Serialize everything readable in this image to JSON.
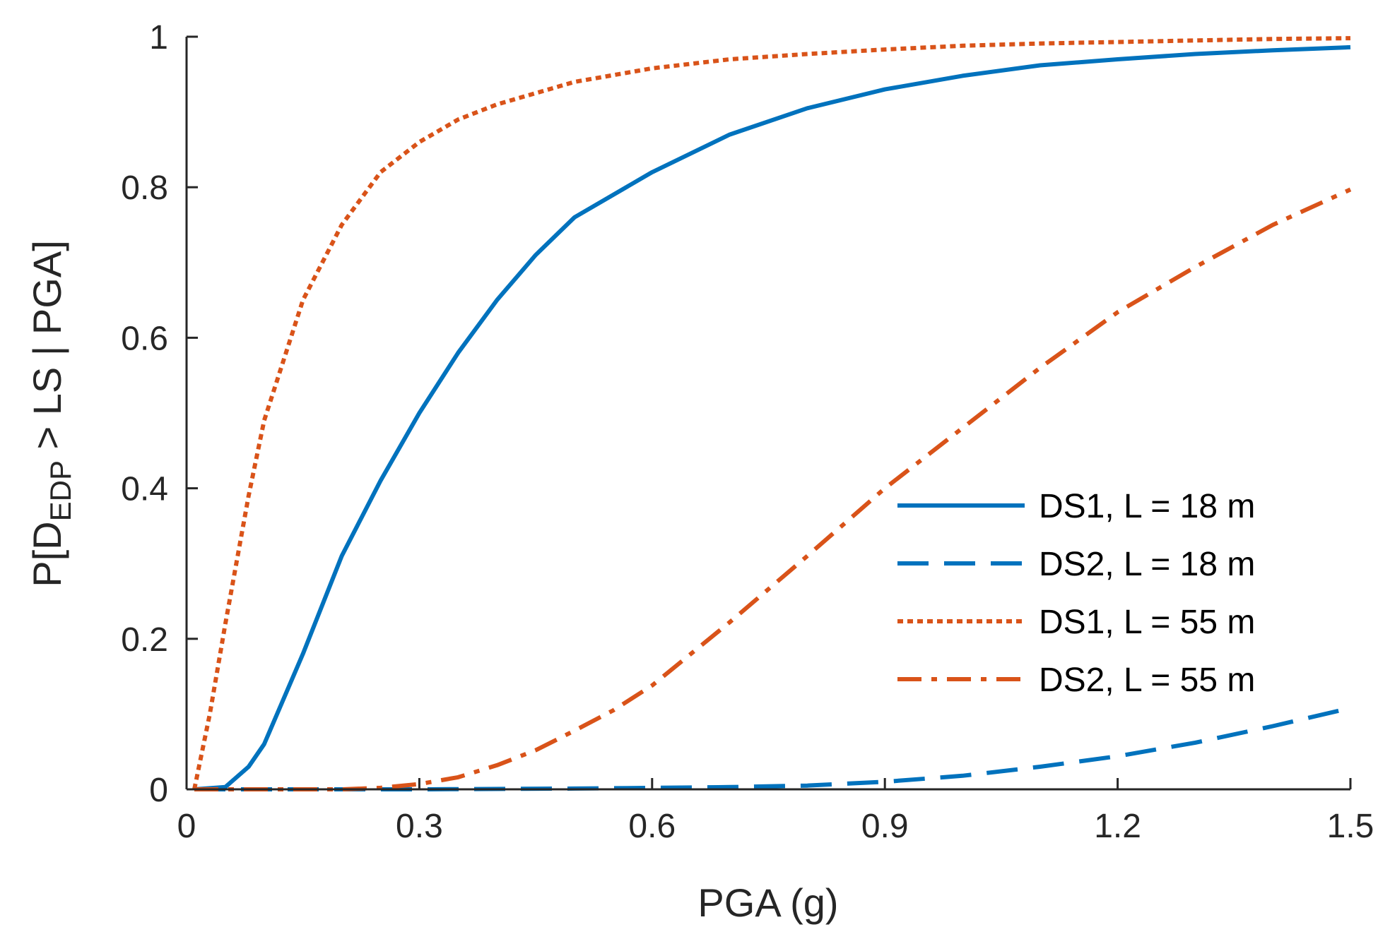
{
  "chart_data": {
    "type": "line",
    "title": "",
    "xlabel": "PGA (g)",
    "ylabel": {
      "prefix": "P[D",
      "subscript": "EDP",
      "suffix": " > LS | PGA]"
    },
    "xlim": [
      0,
      1.5
    ],
    "ylim": [
      0,
      1
    ],
    "xticks": [
      0,
      0.3,
      0.6,
      0.9,
      1.2,
      1.5
    ],
    "xtick_labels": [
      "0",
      "0.3",
      "0.6",
      "0.9",
      "1.2",
      "1.5"
    ],
    "yticks": [
      0,
      0.2,
      0.4,
      0.6,
      0.8,
      1
    ],
    "ytick_labels": [
      "0",
      "0.2",
      "0.4",
      "0.6",
      "0.8",
      "1"
    ],
    "grid": false,
    "legend_position": "center-right",
    "series": [
      {
        "name": "DS1, L = 18 m",
        "color": "#0072BD",
        "style": "solid",
        "x": [
          0.01,
          0.05,
          0.08,
          0.1,
          0.15,
          0.2,
          0.25,
          0.3,
          0.35,
          0.4,
          0.45,
          0.5,
          0.6,
          0.7,
          0.8,
          0.9,
          1.0,
          1.1,
          1.2,
          1.3,
          1.4,
          1.5
        ],
        "y": [
          0.0,
          0.003,
          0.03,
          0.06,
          0.18,
          0.31,
          0.41,
          0.5,
          0.58,
          0.65,
          0.71,
          0.76,
          0.82,
          0.87,
          0.905,
          0.93,
          0.948,
          0.962,
          0.97,
          0.977,
          0.982,
          0.986
        ]
      },
      {
        "name": "DS2, L = 18 m",
        "color": "#0072BD",
        "style": "dashed",
        "x": [
          0.01,
          0.3,
          0.5,
          0.6,
          0.7,
          0.8,
          0.9,
          1.0,
          1.1,
          1.2,
          1.3,
          1.4,
          1.5
        ],
        "y": [
          0.0,
          0.0,
          0.001,
          0.002,
          0.003,
          0.005,
          0.01,
          0.018,
          0.03,
          0.044,
          0.062,
          0.084,
          0.108
        ]
      },
      {
        "name": "DS1, L = 55 m",
        "color": "#D95319",
        "style": "dotted",
        "x": [
          0.01,
          0.03,
          0.05,
          0.08,
          0.1,
          0.15,
          0.2,
          0.25,
          0.3,
          0.35,
          0.4,
          0.5,
          0.6,
          0.7,
          0.8,
          0.9,
          1.0,
          1.1,
          1.2,
          1.3,
          1.4,
          1.5
        ],
        "y": [
          0.0,
          0.1,
          0.22,
          0.39,
          0.49,
          0.65,
          0.75,
          0.82,
          0.86,
          0.89,
          0.91,
          0.94,
          0.958,
          0.97,
          0.977,
          0.983,
          0.988,
          0.991,
          0.993,
          0.995,
          0.997,
          0.998
        ]
      },
      {
        "name": "DS2, L = 55 m",
        "color": "#D95319",
        "style": "dashdot",
        "x": [
          0.01,
          0.2,
          0.25,
          0.3,
          0.35,
          0.4,
          0.45,
          0.5,
          0.55,
          0.6,
          0.7,
          0.8,
          0.9,
          1.0,
          1.1,
          1.2,
          1.3,
          1.4,
          1.5
        ],
        "y": [
          0.0,
          0.0,
          0.002,
          0.007,
          0.016,
          0.032,
          0.052,
          0.078,
          0.105,
          0.138,
          0.222,
          0.31,
          0.4,
          0.48,
          0.56,
          0.634,
          0.694,
          0.75,
          0.797
        ]
      }
    ]
  }
}
